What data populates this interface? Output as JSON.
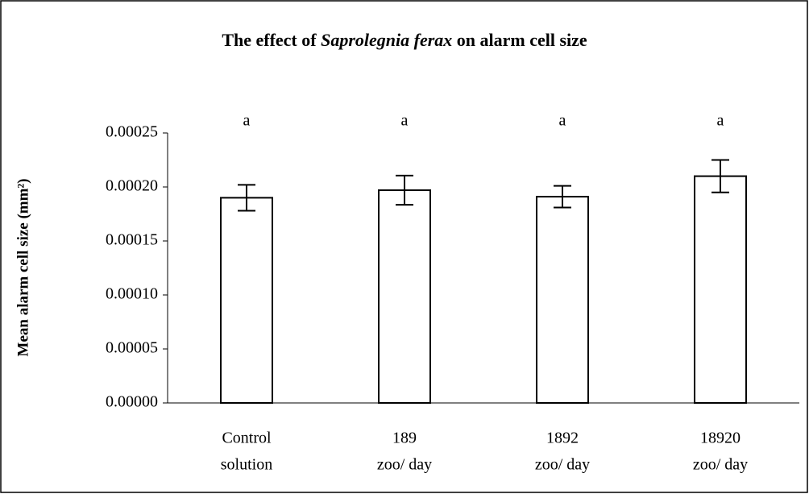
{
  "chart_data": {
    "type": "bar",
    "title": [
      "The effect of ",
      "Saprolegnia ferax",
      "  on alarm cell size"
    ],
    "y_label": "Mean alarm cell size (mm²)",
    "categories": [
      [
        "Control",
        "solution"
      ],
      [
        "189",
        "zoo/ day"
      ],
      [
        "1892",
        "zoo/ day"
      ],
      [
        "18920",
        "zoo/ day"
      ]
    ],
    "values": [
      0.00019,
      0.000197,
      0.000191,
      0.00021
    ],
    "errors": [
      1.2e-05,
      1.35e-05,
      1e-05,
      1.5e-05
    ],
    "annotations": [
      "a",
      "a",
      "a",
      "a"
    ],
    "color": "#ffffff",
    "ylim": [
      0,
      0.00025
    ],
    "yticks": [
      {
        "value": 0,
        "label": "0.00000"
      },
      {
        "value": 5e-05,
        "label": "0.00005"
      },
      {
        "value": 0.0001,
        "label": "0.00010"
      },
      {
        "value": 0.00015,
        "label": "0.00015"
      },
      {
        "value": 0.0002,
        "label": "0.00020"
      },
      {
        "value": 0.00025,
        "label": "0.00025"
      }
    ],
    "grid": false
  }
}
